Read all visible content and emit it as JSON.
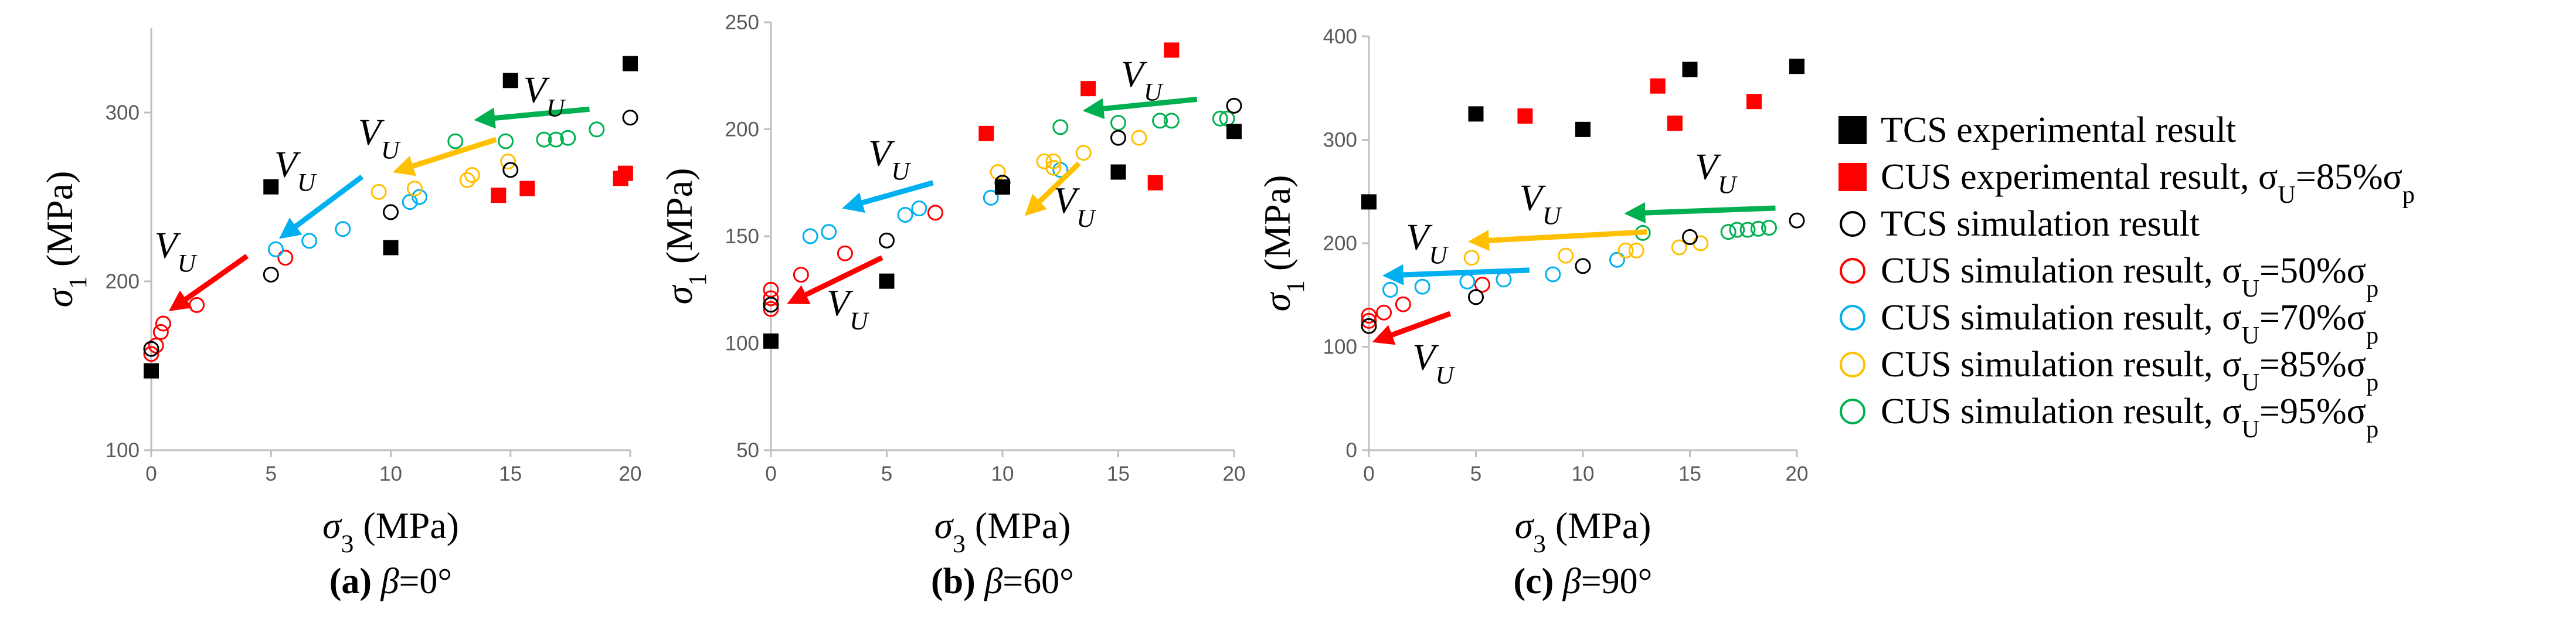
{
  "series_meta": [
    {
      "key": "tcs_exp",
      "label": "TCS experimental result",
      "color": "#000000",
      "marker": "square"
    },
    {
      "key": "cus_exp",
      "label": "CUS experimental result, σ",
      "label_sub": "U",
      "label_rest": "=85%σ",
      "label_sub2": "p",
      "color": "#ff0000",
      "marker": "square"
    },
    {
      "key": "tcs_sim",
      "label": "TCS simulation result",
      "color": "#000000",
      "marker": "circle"
    },
    {
      "key": "cus50",
      "label": "CUS simulation result, σ",
      "label_sub": "U",
      "label_rest": "=50%σ",
      "label_sub2": "p",
      "color": "#ff0000",
      "marker": "circle"
    },
    {
      "key": "cus70",
      "label": "CUS simulation result, σ",
      "label_sub": "U",
      "label_rest": "=70%σ",
      "label_sub2": "p",
      "color": "#00b0f0",
      "marker": "circle"
    },
    {
      "key": "cus85",
      "label": "CUS simulation result, σ",
      "label_sub": "U",
      "label_rest": "=85%σ",
      "label_sub2": "p",
      "color": "#ffc000",
      "marker": "circle"
    },
    {
      "key": "cus95",
      "label": "CUS simulation result, σ",
      "label_sub": "U",
      "label_rest": "=95%σ",
      "label_sub2": "p",
      "color": "#00b050",
      "marker": "circle"
    }
  ],
  "axis_text": {
    "ylabel_main": "σ",
    "ylabel_sub": "1",
    "ylabel_unit": " (MPa)",
    "xlabel_main": "σ",
    "xlabel_sub": "3",
    "xlabel_unit": " (MPa)",
    "vu_main": "V",
    "vu_sub": "U"
  },
  "chart_data": [
    {
      "type": "scatter",
      "caption_letter": "(a)",
      "caption_rest": "=0°",
      "caption_beta": "β",
      "xlim": [
        0,
        20
      ],
      "ylim": [
        100,
        350
      ],
      "xticks": [
        0,
        5,
        10,
        15,
        20
      ],
      "yticks": [
        100,
        200,
        300
      ],
      "series": {
        "tcs_exp": [
          [
            0,
            147
          ],
          [
            5,
            256
          ],
          [
            10,
            220
          ],
          [
            15,
            319
          ],
          [
            20,
            329
          ]
        ],
        "cus_exp": [
          [
            14.5,
            251
          ],
          [
            15.7,
            255
          ],
          [
            19.6,
            261
          ],
          [
            19.8,
            264
          ]
        ],
        "tcs_sim": [
          [
            0,
            160
          ],
          [
            5,
            204
          ],
          [
            10,
            241
          ],
          [
            15,
            266
          ],
          [
            20,
            297
          ]
        ],
        "cus50": [
          [
            0,
            157
          ],
          [
            0.2,
            162
          ],
          [
            0.4,
            170
          ],
          [
            0.5,
            175
          ],
          [
            1.9,
            186
          ],
          [
            5.6,
            214
          ]
        ],
        "cus70": [
          [
            5.2,
            219
          ],
          [
            6.6,
            224
          ],
          [
            8.0,
            231
          ],
          [
            10.8,
            247
          ],
          [
            11.2,
            250
          ]
        ],
        "cus85": [
          [
            9.5,
            253
          ],
          [
            11.0,
            255
          ],
          [
            13.2,
            260
          ],
          [
            13.4,
            263
          ],
          [
            14.9,
            271
          ]
        ],
        "cus95": [
          [
            12.7,
            283
          ],
          [
            14.8,
            283
          ],
          [
            16.4,
            284
          ],
          [
            16.9,
            284
          ],
          [
            17.4,
            285
          ],
          [
            18.6,
            290
          ]
        ]
      },
      "arrows": [
        {
          "color": "red",
          "from": [
            4.0,
            215
          ],
          "to": [
            1.0,
            185
          ],
          "label": [
            1.0,
            214
          ]
        },
        {
          "color": "#00b0f0",
          "from": [
            8.8,
            262
          ],
          "to": [
            5.6,
            228
          ],
          "label": [
            6.0,
            262
          ]
        },
        {
          "color": "#ffc000",
          "from": [
            14.4,
            284
          ],
          "to": [
            10.4,
            266
          ],
          "label": [
            9.5,
            281
          ]
        },
        {
          "color": "#00b050",
          "from": [
            18.3,
            302
          ],
          "to": [
            13.8,
            296
          ],
          "label": [
            16.4,
            306
          ]
        }
      ]
    },
    {
      "type": "scatter",
      "caption_letter": "(b)",
      "caption_rest": "=60°",
      "caption_beta": "β",
      "xlim": [
        0,
        20
      ],
      "ylim": [
        50,
        250
      ],
      "xticks": [
        0,
        5,
        10,
        15,
        20
      ],
      "yticks": [
        50,
        100,
        150,
        200,
        250
      ],
      "series": {
        "tcs_exp": [
          [
            0,
            101
          ],
          [
            5,
            129
          ],
          [
            10,
            173
          ],
          [
            15,
            180
          ],
          [
            20,
            199
          ]
        ],
        "cus_exp": [
          [
            9.3,
            198
          ],
          [
            13.7,
            219
          ],
          [
            16.6,
            175
          ],
          [
            17.3,
            237
          ]
        ],
        "tcs_sim": [
          [
            0,
            118
          ],
          [
            5,
            148
          ],
          [
            10,
            175
          ],
          [
            15,
            196
          ],
          [
            20,
            211
          ]
        ],
        "cus50": [
          [
            0,
            116
          ],
          [
            0,
            121
          ],
          [
            0,
            125
          ],
          [
            1.3,
            132
          ],
          [
            3.2,
            142
          ],
          [
            7.1,
            161
          ]
        ],
        "cus70": [
          [
            1.7,
            150
          ],
          [
            2.5,
            152
          ],
          [
            5.8,
            160
          ],
          [
            6.4,
            163
          ],
          [
            9.5,
            168
          ],
          [
            12.5,
            181
          ]
        ],
        "cus85": [
          [
            9.8,
            180
          ],
          [
            11.8,
            185
          ],
          [
            12.2,
            185
          ],
          [
            13.5,
            189
          ],
          [
            15.9,
            196
          ],
          [
            12.2,
            182
          ]
        ],
        "cus95": [
          [
            12.5,
            201
          ],
          [
            15.0,
            203
          ],
          [
            16.8,
            204
          ],
          [
            17.3,
            204
          ],
          [
            19.4,
            205
          ],
          [
            19.7,
            205
          ]
        ]
      },
      "arrows": [
        {
          "color": "red",
          "from": [
            4.8,
            140
          ],
          "to": [
            1.0,
            120
          ],
          "label": [
            3.3,
            113
          ]
        },
        {
          "color": "#00b0f0",
          "from": [
            7.0,
            175
          ],
          "to": [
            3.4,
            164
          ],
          "label": [
            5.1,
            183
          ]
        },
        {
          "color": "#ffc000",
          "from": [
            13.3,
            184
          ],
          "to": [
            11.2,
            162
          ],
          "label": [
            13.1,
            161
          ]
        },
        {
          "color": "#00b050",
          "from": [
            18.4,
            214
          ],
          "to": [
            13.8,
            209
          ],
          "label": [
            16.0,
            220
          ]
        }
      ]
    },
    {
      "type": "scatter",
      "caption_letter": "(c)",
      "caption_rest": "=90°",
      "caption_beta": "β",
      "xlim": [
        0,
        20
      ],
      "ylim": [
        0,
        400
      ],
      "xticks": [
        0,
        5,
        10,
        15,
        20
      ],
      "yticks": [
        0,
        100,
        200,
        300,
        400
      ],
      "series": {
        "tcs_exp": [
          [
            0,
            240
          ],
          [
            5,
            325
          ],
          [
            10,
            310
          ],
          [
            15,
            368
          ],
          [
            20,
            371
          ]
        ],
        "cus_exp": [
          [
            7.3,
            323
          ],
          [
            13.5,
            352
          ],
          [
            14.3,
            316
          ],
          [
            18.0,
            337
          ]
        ],
        "tcs_sim": [
          [
            0,
            120
          ],
          [
            5,
            148
          ],
          [
            10,
            178
          ],
          [
            15,
            206
          ],
          [
            20,
            222
          ]
        ],
        "cus50": [
          [
            0,
            125
          ],
          [
            0,
            130
          ],
          [
            0.7,
            133
          ],
          [
            1.6,
            141
          ],
          [
            5.3,
            160
          ]
        ],
        "cus70": [
          [
            1.0,
            155
          ],
          [
            2.5,
            158
          ],
          [
            4.6,
            163
          ],
          [
            6.3,
            165
          ],
          [
            8.6,
            170
          ],
          [
            11.6,
            184
          ]
        ],
        "cus85": [
          [
            4.8,
            186
          ],
          [
            9.2,
            188
          ],
          [
            12.0,
            193
          ],
          [
            12.5,
            193
          ],
          [
            14.5,
            196
          ],
          [
            15.5,
            200
          ]
        ],
        "cus95": [
          [
            12.8,
            210
          ],
          [
            16.8,
            211
          ],
          [
            17.2,
            213
          ],
          [
            17.7,
            213
          ],
          [
            18.2,
            214
          ],
          [
            18.7,
            215
          ]
        ]
      },
      "arrows": [
        {
          "color": "red",
          "from": [
            3.8,
            132
          ],
          "to": [
            0.5,
            107
          ],
          "label": [
            3.0,
            78
          ]
        },
        {
          "color": "#00b0f0",
          "from": [
            7.5,
            174
          ],
          "to": [
            1.0,
            169
          ],
          "label": [
            2.7,
            194
          ]
        },
        {
          "color": "#ffc000",
          "from": [
            13.0,
            211
          ],
          "to": [
            5.0,
            202
          ],
          "label": [
            8.0,
            232
          ]
        },
        {
          "color": "#00b050",
          "from": [
            19.0,
            234
          ],
          "to": [
            12.3,
            229
          ],
          "label": [
            16.2,
            262
          ]
        }
      ]
    }
  ]
}
